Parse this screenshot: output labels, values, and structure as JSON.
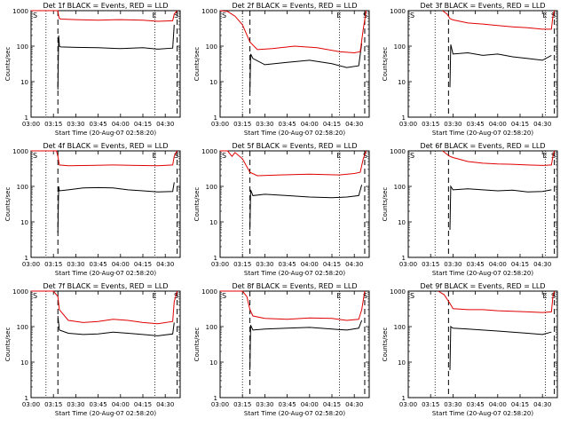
{
  "xlabel": "Start Time (20-Aug-07 02:58:20)",
  "ylabel": "Counts/sec",
  "x_ticks": [
    "03:00",
    "03:15",
    "03:30",
    "03:45",
    "04:00",
    "04:15",
    "04:30"
  ],
  "y_ticks": [
    "1000",
    "100",
    "10",
    "1"
  ],
  "marker_labels": {
    "S": "S",
    "E": "E"
  },
  "colors": {
    "events": "#000000",
    "lld": "#e00000"
  },
  "chart_data": [
    {
      "type": "line",
      "title": "Det 1f BLACK = Events, RED = LLD",
      "xlim_minutes": [
        0,
        100
      ],
      "ylim": [
        1,
        1000
      ],
      "yscale": "log",
      "markers": {
        "dotted": [
          10,
          83
        ],
        "dashed": [
          18,
          98
        ]
      },
      "series": [
        {
          "name": "Events",
          "x": [
            18,
            18.5,
            19,
            20,
            30,
            45,
            60,
            75,
            85,
            95,
            96
          ],
          "values": [
            6,
            200,
            100,
            95,
            92,
            90,
            85,
            90,
            82,
            88,
            400
          ]
        },
        {
          "name": "LLD",
          "x": [
            0,
            18,
            18.5,
            19,
            20,
            30,
            45,
            60,
            75,
            85,
            95,
            96,
            98
          ],
          "values": [
            1000,
            1000,
            700,
            600,
            580,
            560,
            540,
            560,
            540,
            500,
            520,
            800,
            1000
          ]
        }
      ]
    },
    {
      "type": "line",
      "title": "Det 2f BLACK = Events, RED = LLD",
      "xlim_minutes": [
        0,
        100
      ],
      "ylim": [
        1,
        1000
      ],
      "yscale": "log",
      "markers": {
        "dotted": [
          15,
          80
        ],
        "dashed": [
          20,
          97
        ]
      },
      "series": [
        {
          "name": "Events",
          "x": [
            20,
            20.5,
            22,
            30,
            45,
            60,
            75,
            85,
            93,
            95
          ],
          "values": [
            5,
            60,
            45,
            30,
            35,
            40,
            32,
            25,
            28,
            120
          ]
        },
        {
          "name": "LLD",
          "x": [
            0,
            5,
            10,
            15,
            20,
            25,
            35,
            50,
            65,
            80,
            90,
            94,
            96,
            98
          ],
          "values": [
            1000,
            950,
            700,
            400,
            130,
            80,
            85,
            100,
            90,
            70,
            65,
            70,
            300,
            1000
          ]
        }
      ]
    },
    {
      "type": "line",
      "title": "Det 3f BLACK = Events, RED = LLD",
      "xlim_minutes": [
        0,
        100
      ],
      "ylim": [
        1,
        1000
      ],
      "yscale": "log",
      "markers": {
        "dotted": [
          18,
          92
        ],
        "dashed": [
          27,
          98
        ]
      },
      "series": [
        {
          "name": "Events",
          "x": [
            28,
            28.5,
            30,
            40,
            50,
            60,
            70,
            80,
            90,
            96
          ],
          "values": [
            7,
            110,
            60,
            65,
            55,
            60,
            50,
            45,
            40,
            55
          ]
        },
        {
          "name": "LLD",
          "x": [
            23,
            26,
            28,
            30,
            40,
            50,
            60,
            70,
            80,
            90,
            96,
            97,
            98
          ],
          "values": [
            1000,
            800,
            600,
            550,
            450,
            420,
            380,
            350,
            330,
            300,
            300,
            700,
            1000
          ]
        }
      ]
    },
    {
      "type": "line",
      "title": "Det 4f BLACK = Events, RED = LLD",
      "xlim_minutes": [
        0,
        100
      ],
      "ylim": [
        1,
        1000
      ],
      "yscale": "log",
      "markers": {
        "dotted": [
          10,
          83
        ],
        "dashed": [
          18,
          98
        ]
      },
      "series": [
        {
          "name": "Events",
          "x": [
            18,
            18.5,
            19,
            25,
            35,
            45,
            55,
            65,
            75,
            85,
            95,
            96
          ],
          "values": [
            5,
            100,
            75,
            80,
            90,
            92,
            90,
            80,
            75,
            70,
            72,
            130
          ]
        },
        {
          "name": "LLD",
          "x": [
            0,
            17,
            18,
            19,
            25,
            40,
            55,
            70,
            85,
            95,
            96,
            98
          ],
          "values": [
            1000,
            1000,
            700,
            400,
            380,
            390,
            400,
            390,
            380,
            400,
            700,
            1000
          ]
        }
      ]
    },
    {
      "type": "line",
      "title": "Det 5f BLACK = Events, RED = LLD",
      "xlim_minutes": [
        0,
        100
      ],
      "ylim": [
        1,
        1000
      ],
      "yscale": "log",
      "markers": {
        "dotted": [
          15,
          80
        ],
        "dashed": [
          20,
          97
        ]
      },
      "series": [
        {
          "name": "Events",
          "x": [
            20,
            20.5,
            22,
            30,
            45,
            60,
            75,
            85,
            93,
            95
          ],
          "values": [
            6,
            80,
            55,
            60,
            55,
            50,
            48,
            50,
            55,
            110
          ]
        },
        {
          "name": "LLD",
          "x": [
            0,
            5,
            8,
            10,
            15,
            20,
            25,
            40,
            60,
            80,
            90,
            94,
            96,
            98
          ],
          "values": [
            1000,
            1000,
            700,
            900,
            600,
            250,
            200,
            210,
            220,
            210,
            230,
            250,
            600,
            1000
          ]
        }
      ]
    },
    {
      "type": "line",
      "title": "Det 6f BLACK = Events, RED = LLD",
      "xlim_minutes": [
        0,
        100
      ],
      "ylim": [
        1,
        1000
      ],
      "yscale": "log",
      "markers": {
        "dotted": [
          18,
          92
        ],
        "dashed": [
          27,
          98
        ]
      },
      "series": [
        {
          "name": "Events",
          "x": [
            28,
            28.5,
            30,
            40,
            50,
            60,
            70,
            80,
            90,
            96
          ],
          "values": [
            6,
            100,
            80,
            85,
            80,
            75,
            78,
            70,
            72,
            80
          ]
        },
        {
          "name": "LLD",
          "x": [
            23,
            26,
            28,
            30,
            40,
            50,
            60,
            70,
            80,
            90,
            96,
            97,
            98
          ],
          "values": [
            1000,
            800,
            700,
            650,
            500,
            450,
            430,
            420,
            400,
            390,
            400,
            700,
            1000
          ]
        }
      ]
    },
    {
      "type": "line",
      "title": "Det 7f BLACK = Events, RED = LLD",
      "xlim_minutes": [
        0,
        100
      ],
      "ylim": [
        1,
        1000
      ],
      "yscale": "log",
      "markers": {
        "dotted": [
          10,
          83
        ],
        "dashed": [
          18,
          98
        ]
      },
      "series": [
        {
          "name": "Events",
          "x": [
            18,
            19,
            25,
            35,
            45,
            55,
            65,
            75,
            85,
            95,
            96
          ],
          "values": [
            200,
            80,
            65,
            60,
            62,
            70,
            65,
            60,
            55,
            62,
            130
          ]
        },
        {
          "name": "LLD",
          "x": [
            0,
            15,
            18,
            19,
            25,
            35,
            45,
            55,
            65,
            75,
            85,
            95,
            96,
            98
          ],
          "values": [
            1000,
            1000,
            700,
            300,
            150,
            130,
            140,
            160,
            150,
            130,
            120,
            140,
            500,
            1000
          ]
        }
      ]
    },
    {
      "type": "line",
      "title": "Det 8f BLACK = Events, RED = LLD",
      "xlim_minutes": [
        0,
        100
      ],
      "ylim": [
        1,
        1000
      ],
      "yscale": "log",
      "markers": {
        "dotted": [
          15,
          80
        ],
        "dashed": [
          20,
          97
        ]
      },
      "series": [
        {
          "name": "Events",
          "x": [
            20,
            20.5,
            22,
            30,
            45,
            60,
            75,
            85,
            93,
            95
          ],
          "values": [
            6,
            110,
            80,
            85,
            90,
            95,
            85,
            80,
            90,
            150
          ]
        },
        {
          "name": "LLD",
          "x": [
            0,
            15,
            18,
            20,
            22,
            30,
            45,
            60,
            75,
            85,
            93,
            95,
            97
          ],
          "values": [
            1000,
            1000,
            700,
            300,
            200,
            170,
            160,
            175,
            170,
            150,
            160,
            300,
            1000
          ]
        }
      ]
    },
    {
      "type": "line",
      "title": "Det 9f BLACK = Events, RED = LLD",
      "xlim_minutes": [
        0,
        100
      ],
      "ylim": [
        1,
        1000
      ],
      "yscale": "log",
      "markers": {
        "dotted": [
          18,
          92
        ],
        "dashed": [
          27,
          98
        ]
      },
      "series": [
        {
          "name": "Events",
          "x": [
            28,
            28.5,
            30,
            40,
            50,
            60,
            70,
            80,
            90,
            96
          ],
          "values": [
            6,
            100,
            90,
            85,
            80,
            75,
            70,
            65,
            60,
            70
          ]
        },
        {
          "name": "LLD",
          "x": [
            20,
            24,
            28,
            30,
            40,
            50,
            60,
            70,
            80,
            90,
            96,
            97,
            98
          ],
          "values": [
            1000,
            800,
            450,
            320,
            300,
            300,
            280,
            270,
            260,
            250,
            260,
            700,
            1000
          ]
        }
      ]
    }
  ]
}
